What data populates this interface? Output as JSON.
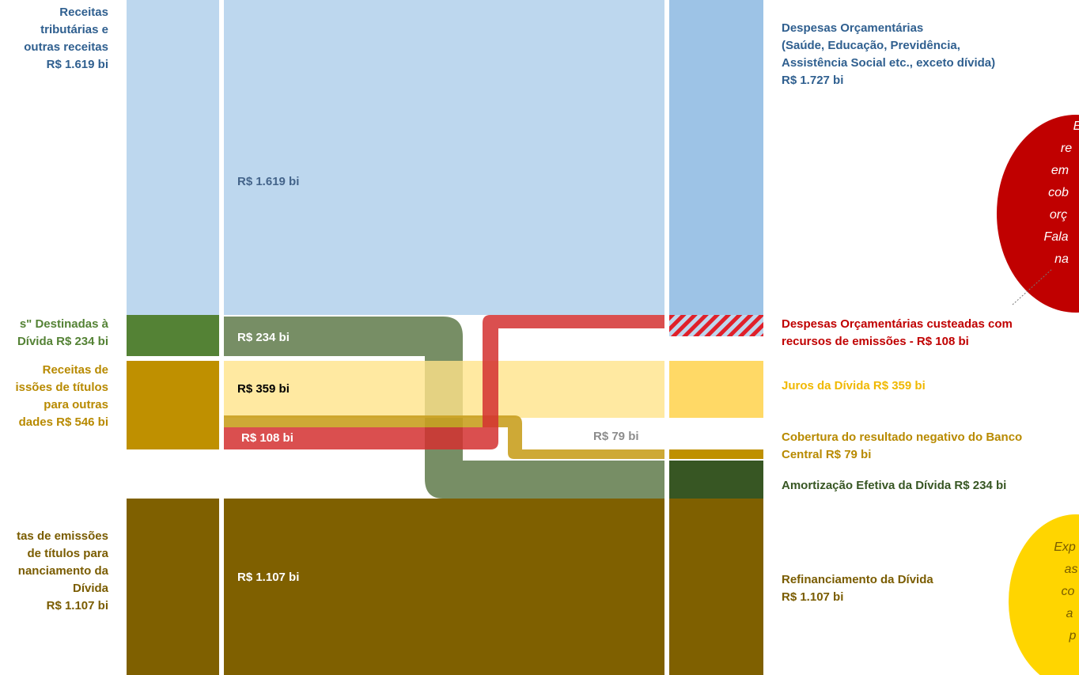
{
  "left_labels": [
    {
      "lines": [
        "Receitas",
        "tributárias e",
        "outras receitas",
        "R$ 1.619 bi"
      ]
    },
    {
      "lines": [
        "s\" Destinadas à",
        "Dívida R$ 234 bi"
      ]
    },
    {
      "lines": [
        "Receitas de",
        "issões de títulos",
        "para outras",
        "dades R$ 546 bi"
      ]
    },
    {
      "lines": [
        "tas de emissões",
        "de títulos para",
        "nanciamento da",
        "Dívida",
        "R$ 1.107 bi"
      ]
    }
  ],
  "flow_labels": [
    "R$ 1.619 bi",
    "R$ 234 bi",
    "R$ 359 bi",
    "R$ 108 bi",
    "R$ 79 bi",
    "R$ 1.107 bi"
  ],
  "right_labels": [
    {
      "lines": [
        "Despesas Orçamentárias",
        "(Saúde, Educação, Previdência,",
        "Assistência Social etc., exceto dívida)",
        "R$ 1.727 bi"
      ]
    },
    {
      "lines": [
        "Despesas Orçamentárias custeadas com",
        "recursos de emissões - R$ 108 bi"
      ]
    },
    {
      "lines": [
        "Juros da Dívida R$ 359 bi"
      ]
    },
    {
      "lines": [
        "Cobertura do resultado negativo do Banco",
        "Central R$ 79 bi"
      ]
    },
    {
      "lines": [
        "Amortização Efetiva da Dívida R$ 234 bi"
      ]
    },
    {
      "lines": [
        "Refinanciamento da Dívida",
        "R$ 1.107 bi"
      ]
    }
  ],
  "notes": [
    {
      "lines": [
        "E",
        "re",
        "em",
        "cob",
        "orç",
        "Fala",
        "na"
      ]
    },
    {
      "lines": [
        "Exp",
        "as",
        "co",
        "a",
        "p"
      ]
    }
  ]
}
